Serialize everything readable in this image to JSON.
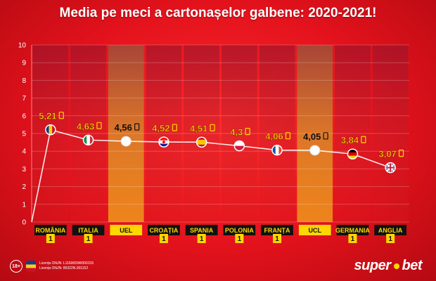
{
  "title": "Media pe meci a cartonașelor galbene: 2020-2021!",
  "chart_data": {
    "type": "line",
    "title": "Media pe meci a cartonașelor galbene: 2020-2021!",
    "ylim": [
      0,
      10
    ],
    "yticks": [
      "0",
      "1",
      "2",
      "3",
      "4",
      "5",
      "6",
      "7",
      "8",
      "9",
      "10"
    ],
    "categories": [
      "ROMÂNIA",
      "ITALIA",
      "UEL",
      "CROAȚIA",
      "SPANIA",
      "POLONIA",
      "FRANȚA",
      "UCL",
      "GERMANIA",
      "ANGLIA"
    ],
    "values": [
      5.21,
      4.63,
      4.56,
      4.52,
      4.51,
      4.3,
      4.06,
      4.05,
      3.84,
      3.07
    ],
    "value_labels": [
      "5,21",
      "4,63",
      "4,56",
      "4,52",
      "4,51",
      "4,3",
      "4,06",
      "4,05",
      "3,84",
      "3,07"
    ],
    "ranks": [
      "1",
      "1",
      "",
      "1",
      "1",
      "1",
      "1",
      "",
      "1",
      "1"
    ],
    "highlighted": [
      "UEL",
      "UCL"
    ],
    "markers": [
      "flag-romania",
      "flag-italy",
      "white-dot",
      "flag-croatia",
      "flag-spain",
      "flag-poland",
      "flag-france",
      "white-dot",
      "flag-germany",
      "flag-england"
    ],
    "colors": {
      "background": "#e2101b",
      "label_yellow": "#ffd600",
      "highlight_label": "#111111",
      "line": "#ffffff",
      "label_box": "#111111"
    }
  },
  "footer": {
    "age_badge": "18+",
    "legal_lines": [
      "Licența ONJN: L1160659W000315",
      "Licența ONJN: 80322N.001152"
    ]
  },
  "brand": {
    "left": "super",
    "right": "bet"
  }
}
